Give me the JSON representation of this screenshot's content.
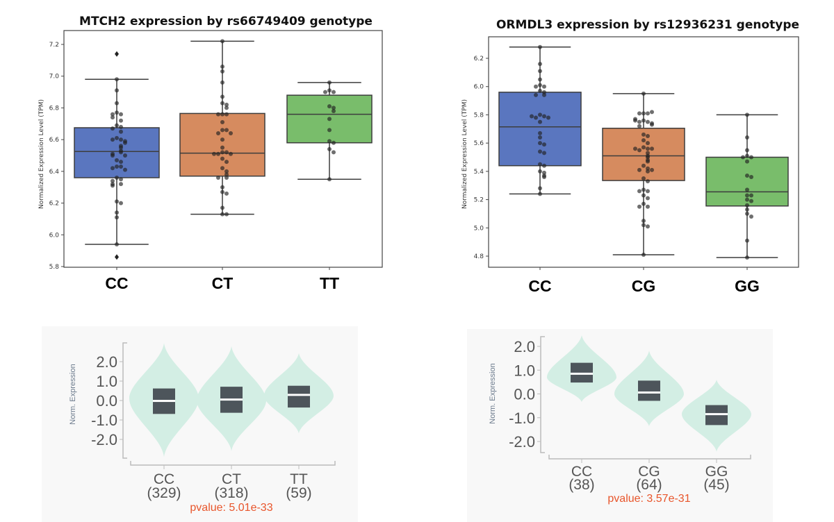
{
  "colors": {
    "CC_or_first": "#5a76bf",
    "second": "#d68b5f",
    "third": "#79bd6b",
    "violin_fill": "#d3eee4",
    "violin_box": "#4d555b",
    "pvalue": "#e8552b"
  },
  "chart_data": [
    {
      "type": "box",
      "title": "MTCH2 expression by rs66749409 genotype",
      "ylabel": "Normalized Expression Level (TPM)",
      "xlabel": "",
      "ylim": [
        5.8,
        7.25
      ],
      "yticks": [
        "5.8",
        "6.0",
        "6.2",
        "6.4",
        "6.6",
        "6.8",
        "7.0",
        "7.2"
      ],
      "categories": [
        "CC",
        "CT",
        "TT"
      ],
      "boxes": [
        {
          "q1": 6.36,
          "median": 6.525,
          "q3": 6.675,
          "whisker_low": 5.94,
          "whisker_high": 6.98,
          "outliers": [
            7.14,
            5.86
          ],
          "points": [
            6.98,
            6.91,
            6.83,
            6.77,
            6.76,
            6.76,
            6.74,
            6.72,
            6.69,
            6.68,
            6.67,
            6.65,
            6.61,
            6.6,
            6.6,
            6.59,
            6.58,
            6.56,
            6.55,
            6.53,
            6.52,
            6.51,
            6.5,
            6.5,
            6.47,
            6.46,
            6.43,
            6.43,
            6.42,
            6.41,
            6.36,
            6.35,
            6.34,
            6.32,
            6.32,
            6.31,
            6.21,
            6.2,
            6.14,
            6.11,
            5.94
          ]
        },
        {
          "q1": 6.37,
          "median": 6.515,
          "q3": 6.765,
          "whisker_low": 6.13,
          "whisker_high": 7.22,
          "outliers": [],
          "points": [
            7.22,
            7.06,
            7.03,
            6.96,
            6.87,
            6.83,
            6.82,
            6.8,
            6.76,
            6.76,
            6.76,
            6.71,
            6.66,
            6.66,
            6.64,
            6.64,
            6.6,
            6.55,
            6.52,
            6.52,
            6.51,
            6.51,
            6.51,
            6.48,
            6.46,
            6.42,
            6.4,
            6.38,
            6.36,
            6.36,
            6.3,
            6.27,
            6.26,
            6.17,
            6.13,
            6.13
          ]
        },
        {
          "q1": 6.58,
          "median": 6.76,
          "q3": 6.88,
          "whisker_low": 6.35,
          "whisker_high": 6.96,
          "outliers": [],
          "points": [
            6.96,
            6.91,
            6.9,
            6.9,
            6.81,
            6.8,
            6.78,
            6.73,
            6.66,
            6.59,
            6.58,
            6.54,
            6.52,
            6.35
          ]
        }
      ]
    },
    {
      "type": "box",
      "title": "ORMDL3 expression by rs12936231 genotype",
      "ylabel": "Normalized Expression Level (TPM)",
      "xlabel": "",
      "ylim": [
        4.75,
        6.33
      ],
      "yticks": [
        "4.8",
        "5.0",
        "5.2",
        "5.4",
        "5.6",
        "5.8",
        "6.0",
        "6.2"
      ],
      "categories": [
        "CC",
        "CG",
        "GG"
      ],
      "boxes": [
        {
          "q1": 5.44,
          "median": 5.715,
          "q3": 5.96,
          "whisker_low": 5.24,
          "whisker_high": 6.28,
          "outliers": [],
          "points": [
            6.28,
            6.16,
            6.11,
            6.05,
            6.01,
            6.0,
            6.0,
            5.97,
            5.96,
            5.94,
            5.94,
            5.8,
            5.79,
            5.78,
            5.78,
            5.79,
            5.75,
            5.67,
            5.64,
            5.6,
            5.59,
            5.54,
            5.53,
            5.45,
            5.44,
            5.4,
            5.39,
            5.37,
            5.36,
            5.28,
            5.24
          ]
        },
        {
          "q1": 5.335,
          "median": 5.51,
          "q3": 5.705,
          "whisker_low": 4.81,
          "whisker_high": 5.95,
          "outliers": [],
          "points": [
            5.95,
            5.81,
            5.81,
            5.81,
            5.82,
            5.76,
            5.75,
            5.75,
            5.74,
            5.76,
            5.77,
            5.73,
            5.72,
            5.66,
            5.65,
            5.62,
            5.6,
            5.57,
            5.56,
            5.55,
            5.56,
            5.56,
            5.53,
            5.51,
            5.5,
            5.48,
            5.47,
            5.44,
            5.42,
            5.4,
            5.41,
            5.41,
            5.35,
            5.33,
            5.27,
            5.26,
            5.26,
            5.23,
            5.21,
            5.17,
            5.15,
            5.15,
            5.05,
            5.02,
            5.01,
            4.81
          ]
        },
        {
          "q1": 5.155,
          "median": 5.255,
          "q3": 5.5,
          "whisker_low": 4.79,
          "whisker_high": 5.8,
          "outliers": [],
          "points": [
            5.8,
            5.64,
            5.55,
            5.51,
            5.5,
            5.5,
            5.47,
            5.37,
            5.36,
            5.27,
            5.23,
            5.23,
            5.2,
            5.19,
            5.16,
            5.13,
            5.1,
            5.08,
            4.91,
            4.79
          ]
        }
      ]
    },
    {
      "type": "violin",
      "title": "",
      "ylabel": "Norm. Expression",
      "ylim": [
        -3.0,
        3.0
      ],
      "yticks": [
        "-2.0",
        "-1.0",
        "0.0",
        "1.0",
        "2.0"
      ],
      "categories": [
        "CC",
        "CT",
        "TT"
      ],
      "counts": [
        "(329)",
        "(318)",
        "(59)"
      ],
      "pvalue": "pvalue: 5.01e-33",
      "violins": [
        {
          "min": -2.9,
          "max": 2.95,
          "mode": 0.1,
          "q1": -0.69,
          "median": -0.02,
          "q3": 0.62
        },
        {
          "min": -2.6,
          "max": 2.8,
          "mode": 0.0,
          "q1": -0.63,
          "median": 0.05,
          "q3": 0.71
        },
        {
          "min": -1.69,
          "max": 2.44,
          "mode": 0.25,
          "q1": -0.36,
          "median": 0.29,
          "q3": 0.76
        }
      ]
    },
    {
      "type": "violin",
      "title": "",
      "ylabel": "Norm. Expression",
      "ylim": [
        -2.5,
        2.5
      ],
      "yticks": [
        "-2.0",
        "-1.0",
        "0.0",
        "1.0",
        "2.0"
      ],
      "categories": [
        "CC",
        "CG",
        "GG"
      ],
      "counts": [
        "(38)",
        "(64)",
        "(45)"
      ],
      "pvalue": "pvalue: 3.57e-31",
      "violins": [
        {
          "min": -0.34,
          "max": 2.47,
          "mode": 0.7,
          "q1": 0.48,
          "median": 0.85,
          "q3": 1.31
        },
        {
          "min": -1.36,
          "max": 1.82,
          "mode": 0.0,
          "q1": -0.29,
          "median": 0.06,
          "q3": 0.56
        },
        {
          "min": -2.43,
          "max": 0.6,
          "mode": -0.85,
          "q1": -1.31,
          "median": -0.85,
          "q3": -0.47
        }
      ]
    }
  ]
}
